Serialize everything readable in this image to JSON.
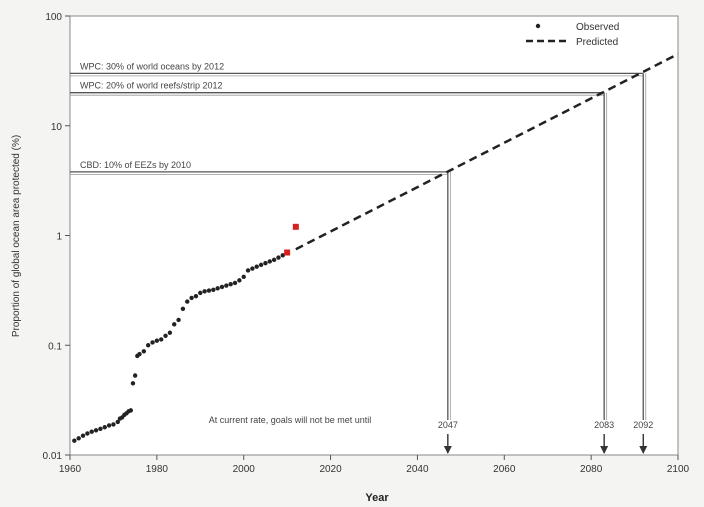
{
  "chart_data": {
    "type": "scatter",
    "title": "",
    "xlabel": "Year",
    "ylabel": "Proportion of global ocean area protected (%)",
    "xlim": [
      1960,
      2100
    ],
    "ylim": [
      0.01,
      100
    ],
    "y_scale": "log",
    "x_ticks": [
      "1960",
      "1980",
      "2000",
      "2020",
      "2040",
      "2060",
      "2080",
      "2100"
    ],
    "y_ticks": [
      "0.01",
      "0.1",
      "1",
      "10",
      "100"
    ],
    "legend": {
      "position": "top-right",
      "entries": [
        "Observed",
        "Predicted"
      ]
    },
    "series": [
      {
        "name": "Observed",
        "style": "dots",
        "points": [
          [
            1961.0,
            0.0135
          ],
          [
            1962.0,
            0.0142
          ],
          [
            1963.0,
            0.015
          ],
          [
            1964.0,
            0.0157
          ],
          [
            1965.0,
            0.0163
          ],
          [
            1966.0,
            0.0168
          ],
          [
            1967.0,
            0.0173
          ],
          [
            1968.0,
            0.0179
          ],
          [
            1969.0,
            0.0186
          ],
          [
            1970.0,
            0.019
          ],
          [
            1971.0,
            0.02
          ],
          [
            1971.5,
            0.0215
          ],
          [
            1972.0,
            0.022
          ],
          [
            1972.5,
            0.0232
          ],
          [
            1973.0,
            0.024
          ],
          [
            1973.5,
            0.025
          ],
          [
            1974.0,
            0.0255
          ],
          [
            1974.5,
            0.045
          ],
          [
            1975.0,
            0.053
          ],
          [
            1975.5,
            0.08
          ],
          [
            1976.0,
            0.083
          ],
          [
            1977.0,
            0.088
          ],
          [
            1978.0,
            0.1
          ],
          [
            1979.0,
            0.106
          ],
          [
            1980.0,
            0.11
          ],
          [
            1981.0,
            0.113
          ],
          [
            1982.0,
            0.122
          ],
          [
            1983.0,
            0.13
          ],
          [
            1984.0,
            0.155
          ],
          [
            1985.0,
            0.17
          ],
          [
            1986.0,
            0.215
          ],
          [
            1987.0,
            0.25
          ],
          [
            1988.0,
            0.27
          ],
          [
            1989.0,
            0.28
          ],
          [
            1990.0,
            0.3
          ],
          [
            1991.0,
            0.31
          ],
          [
            1992.0,
            0.315
          ],
          [
            1993.0,
            0.32
          ],
          [
            1994.0,
            0.33
          ],
          [
            1995.0,
            0.34
          ],
          [
            1996.0,
            0.35
          ],
          [
            1997.0,
            0.36
          ],
          [
            1998.0,
            0.37
          ],
          [
            1999.0,
            0.39
          ],
          [
            2000.0,
            0.42
          ],
          [
            2001.0,
            0.48
          ],
          [
            2002.0,
            0.5
          ],
          [
            2003.0,
            0.52
          ],
          [
            2004.0,
            0.54
          ],
          [
            2005.0,
            0.56
          ],
          [
            2006.0,
            0.58
          ],
          [
            2007.0,
            0.6
          ],
          [
            2008.0,
            0.63
          ],
          [
            2009.0,
            0.66
          ],
          [
            2010.0,
            0.7
          ]
        ]
      },
      {
        "name": "Observed (highlighted)",
        "style": "red-dots",
        "points": [
          [
            2010.0,
            0.7
          ],
          [
            2012.0,
            1.2
          ]
        ]
      },
      {
        "name": "Predicted",
        "style": "dashed",
        "points": [
          [
            2012.0,
            0.75
          ],
          [
            2100.0,
            45
          ]
        ]
      }
    ],
    "targets": [
      {
        "label": "WPC: 30% of world oceans by 2012",
        "y": 30,
        "x_end": 2092,
        "year_label": "2092"
      },
      {
        "label": "WPC: 20% of world reefs/strip 2012",
        "y": 20,
        "x_end": 2083,
        "year_label": "2083"
      },
      {
        "label": "CBD: 10% of EEZs by 2010",
        "y": 3.8,
        "x_end": 2047,
        "year_label": "2047"
      }
    ],
    "annotation": "At current rate, goals will not be met until"
  }
}
